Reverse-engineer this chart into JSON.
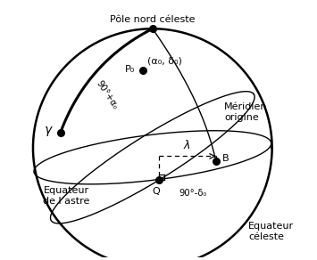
{
  "background_color": "#ffffff",
  "labels": {
    "pole_nord": "Pôle nord céleste",
    "alpha_delta": "(α₀, δ₀)",
    "meridien": "Méridien\norigine",
    "equateur_astre": "Equateur\nde l’astre",
    "equateur_celeste": "Equateur\ncéleste",
    "P0": "P₀",
    "gamma": "γ",
    "Q": "Q",
    "B": "B",
    "lambda": "λ",
    "arc_label": "90°+α₀",
    "angle_label": "90°-δ₀"
  }
}
